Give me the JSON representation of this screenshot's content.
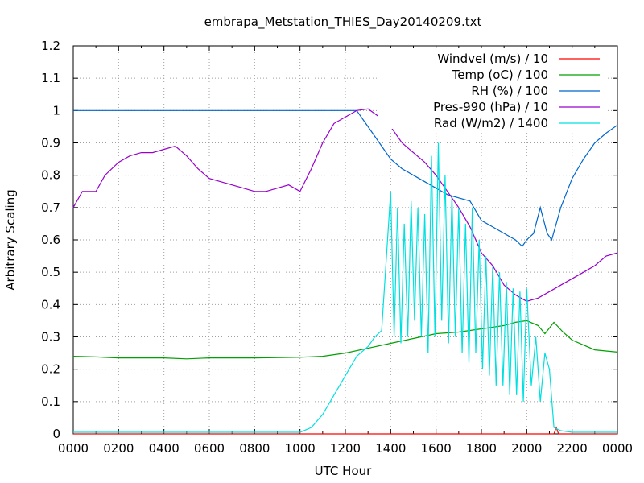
{
  "chart_data": {
    "type": "line",
    "title": "embrapa_Metstation_THIES_Day20140209.txt",
    "xlabel": "UTC Hour",
    "ylabel": "Arbitrary Scaling",
    "xlim": [
      0,
      24
    ],
    "ylim": [
      0,
      1.2
    ],
    "x_tick_labels": [
      "0000",
      "0200",
      "0400",
      "0600",
      "0800",
      "1000",
      "1200",
      "1400",
      "1600",
      "1800",
      "2000",
      "2200",
      "0000"
    ],
    "y_ticks": [
      0,
      0.1,
      0.2,
      0.3,
      0.4,
      0.5,
      0.6,
      0.7,
      0.8,
      0.9,
      1,
      1.1,
      1.2
    ],
    "y_tick_labels": [
      "0",
      "0.1",
      "0.2",
      "0.3",
      "0.4",
      "0.5",
      "0.6",
      "0.7",
      "0.8",
      "0.9",
      "1",
      "1.1",
      "1.2"
    ],
    "grid": true,
    "legend_position": "top-right",
    "series": [
      {
        "name": "Windvel (m/s) / 10",
        "color": "#ff0000",
        "points": [
          [
            0,
            0
          ],
          [
            21.2,
            0
          ],
          [
            21.3,
            0.02
          ],
          [
            21.4,
            0
          ],
          [
            24,
            0
          ]
        ]
      },
      {
        "name": "Temp (oC) / 100",
        "color": "#00a000",
        "points": [
          [
            0,
            0.24
          ],
          [
            1,
            0.238
          ],
          [
            2,
            0.235
          ],
          [
            4,
            0.235
          ],
          [
            5,
            0.232
          ],
          [
            6,
            0.235
          ],
          [
            8,
            0.235
          ],
          [
            10,
            0.237
          ],
          [
            11,
            0.24
          ],
          [
            12,
            0.25
          ],
          [
            13,
            0.265
          ],
          [
            14,
            0.28
          ],
          [
            15,
            0.295
          ],
          [
            16,
            0.31
          ],
          [
            17,
            0.315
          ],
          [
            18,
            0.325
          ],
          [
            19,
            0.335
          ],
          [
            19.5,
            0.345
          ],
          [
            20,
            0.35
          ],
          [
            20.5,
            0.335
          ],
          [
            20.8,
            0.31
          ],
          [
            21.2,
            0.345
          ],
          [
            21.6,
            0.315
          ],
          [
            22,
            0.29
          ],
          [
            23,
            0.26
          ],
          [
            24,
            0.253
          ]
        ]
      },
      {
        "name": "RH (%) / 100",
        "color": "#0066cc",
        "points": [
          [
            0,
            1
          ],
          [
            12,
            1
          ],
          [
            12.5,
            1
          ],
          [
            13,
            0.95
          ],
          [
            13.5,
            0.9
          ],
          [
            14,
            0.85
          ],
          [
            14.5,
            0.82
          ],
          [
            15,
            0.8
          ],
          [
            15.5,
            0.78
          ],
          [
            16,
            0.76
          ],
          [
            16.5,
            0.74
          ],
          [
            17,
            0.73
          ],
          [
            17.5,
            0.72
          ],
          [
            18,
            0.66
          ],
          [
            18.5,
            0.64
          ],
          [
            19,
            0.62
          ],
          [
            19.5,
            0.6
          ],
          [
            19.8,
            0.58
          ],
          [
            20,
            0.6
          ],
          [
            20.3,
            0.62
          ],
          [
            20.6,
            0.7
          ],
          [
            20.9,
            0.62
          ],
          [
            21.1,
            0.6
          ],
          [
            21.5,
            0.7
          ],
          [
            22,
            0.79
          ],
          [
            22.5,
            0.85
          ],
          [
            23,
            0.9
          ],
          [
            23.5,
            0.93
          ],
          [
            24,
            0.955
          ]
        ]
      },
      {
        "name": "Pres-990 (hPa) / 10",
        "color": "#9900cc",
        "points": [
          [
            0,
            0.7
          ],
          [
            0.4,
            0.75
          ],
          [
            1,
            0.75
          ],
          [
            1.4,
            0.8
          ],
          [
            2,
            0.84
          ],
          [
            2.5,
            0.86
          ],
          [
            3,
            0.87
          ],
          [
            3.5,
            0.87
          ],
          [
            4,
            0.88
          ],
          [
            4.5,
            0.89
          ],
          [
            5,
            0.86
          ],
          [
            5.5,
            0.82
          ],
          [
            6,
            0.79
          ],
          [
            6.5,
            0.78
          ],
          [
            7,
            0.77
          ],
          [
            7.5,
            0.76
          ],
          [
            8,
            0.75
          ],
          [
            8.5,
            0.75
          ],
          [
            9,
            0.76
          ],
          [
            9.5,
            0.77
          ],
          [
            10,
            0.75
          ],
          [
            10.5,
            0.82
          ],
          [
            11,
            0.9
          ],
          [
            11.5,
            0.96
          ],
          [
            12,
            0.98
          ],
          [
            12.5,
            1.0
          ],
          [
            13,
            1.005
          ],
          [
            13.5,
            0.98
          ],
          [
            14,
            0.95
          ],
          [
            14.5,
            0.9
          ],
          [
            15,
            0.87
          ],
          [
            15.5,
            0.84
          ],
          [
            16,
            0.8
          ],
          [
            16.5,
            0.75
          ],
          [
            17,
            0.7
          ],
          [
            17.5,
            0.64
          ],
          [
            18,
            0.56
          ],
          [
            18.5,
            0.52
          ],
          [
            19,
            0.46
          ],
          [
            19.5,
            0.43
          ],
          [
            20,
            0.41
          ],
          [
            20.5,
            0.42
          ],
          [
            21,
            0.44
          ],
          [
            21.5,
            0.46
          ],
          [
            22,
            0.48
          ],
          [
            22.5,
            0.5
          ],
          [
            23,
            0.52
          ],
          [
            23.5,
            0.55
          ],
          [
            24,
            0.56
          ]
        ]
      },
      {
        "name": "Rad (W/m2) / 1400",
        "color": "#00e0e0",
        "points": [
          [
            0,
            0.005
          ],
          [
            10,
            0.005
          ],
          [
            10.5,
            0.02
          ],
          [
            11,
            0.06
          ],
          [
            11.5,
            0.12
          ],
          [
            12,
            0.18
          ],
          [
            12.5,
            0.24
          ],
          [
            13,
            0.27
          ],
          [
            13.3,
            0.3
          ],
          [
            13.6,
            0.32
          ],
          [
            14.0,
            0.75
          ],
          [
            14.15,
            0.3
          ],
          [
            14.3,
            0.7
          ],
          [
            14.45,
            0.28
          ],
          [
            14.6,
            0.65
          ],
          [
            14.75,
            0.3
          ],
          [
            14.9,
            0.72
          ],
          [
            15.05,
            0.35
          ],
          [
            15.2,
            0.7
          ],
          [
            15.35,
            0.3
          ],
          [
            15.5,
            0.68
          ],
          [
            15.65,
            0.25
          ],
          [
            15.8,
            0.86
          ],
          [
            15.95,
            0.3
          ],
          [
            16.1,
            0.9
          ],
          [
            16.25,
            0.35
          ],
          [
            16.4,
            0.8
          ],
          [
            16.55,
            0.28
          ],
          [
            16.7,
            0.74
          ],
          [
            16.85,
            0.3
          ],
          [
            17.0,
            0.7
          ],
          [
            17.15,
            0.25
          ],
          [
            17.3,
            0.65
          ],
          [
            17.45,
            0.22
          ],
          [
            17.6,
            0.7
          ],
          [
            17.75,
            0.25
          ],
          [
            17.9,
            0.6
          ],
          [
            18.05,
            0.2
          ],
          [
            18.2,
            0.55
          ],
          [
            18.35,
            0.18
          ],
          [
            18.5,
            0.52
          ],
          [
            18.65,
            0.15
          ],
          [
            18.8,
            0.5
          ],
          [
            18.95,
            0.15
          ],
          [
            19.1,
            0.47
          ],
          [
            19.25,
            0.12
          ],
          [
            19.4,
            0.45
          ],
          [
            19.55,
            0.12
          ],
          [
            19.7,
            0.44
          ],
          [
            19.85,
            0.1
          ],
          [
            20.0,
            0.45
          ],
          [
            20.2,
            0.15
          ],
          [
            20.4,
            0.3
          ],
          [
            20.6,
            0.1
          ],
          [
            20.8,
            0.25
          ],
          [
            21.0,
            0.2
          ],
          [
            21.2,
            0.02
          ],
          [
            21.5,
            0.01
          ],
          [
            22,
            0.005
          ],
          [
            24,
            0.005
          ]
        ]
      }
    ]
  }
}
